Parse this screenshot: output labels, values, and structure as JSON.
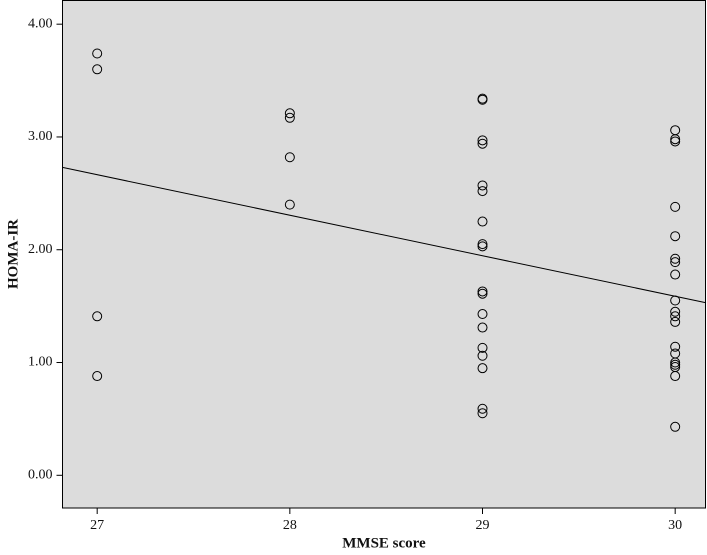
{
  "chart_data": {
    "type": "scatter",
    "x_label": "MMSE score",
    "y_label": "HOMA-IR",
    "x": [
      27,
      27,
      27,
      27,
      28,
      28,
      28,
      28,
      29,
      29,
      29,
      29,
      29,
      29,
      29,
      29,
      29,
      29,
      29,
      29,
      29,
      29,
      29,
      29,
      29,
      29,
      30,
      30,
      30,
      30,
      30,
      30,
      30,
      30,
      30,
      30,
      30,
      30,
      30,
      30,
      30,
      30,
      30,
      30,
      30
    ],
    "values": [
      3.74,
      3.6,
      1.41,
      0.88,
      3.21,
      3.17,
      2.82,
      2.4,
      3.33,
      3.34,
      2.97,
      2.94,
      2.57,
      2.52,
      2.25,
      2.05,
      2.03,
      1.63,
      1.61,
      1.43,
      1.31,
      1.13,
      1.06,
      0.95,
      0.59,
      0.55,
      3.06,
      2.98,
      2.96,
      2.38,
      2.12,
      1.92,
      1.89,
      1.78,
      1.55,
      1.45,
      1.41,
      1.36,
      1.14,
      1.08,
      1.0,
      0.98,
      0.96,
      0.88,
      0.43
    ],
    "fit_line": {
      "x": [
        26.82,
        30.16
      ],
      "values": [
        2.73,
        1.53
      ]
    },
    "xlim": [
      26.82,
      30.16
    ],
    "xticks": [
      27,
      28,
      29,
      30
    ],
    "ylim": [
      -0.29,
      4.21
    ],
    "yticks": [
      {
        "value": 0,
        "label": "0.00"
      },
      {
        "value": 1,
        "label": "1.00"
      },
      {
        "value": 2,
        "label": "2.00"
      },
      {
        "value": 3,
        "label": "3.00"
      },
      {
        "value": 4,
        "label": "4.00"
      }
    ],
    "background": "#dcdcdc",
    "marker_color": "#000000"
  }
}
